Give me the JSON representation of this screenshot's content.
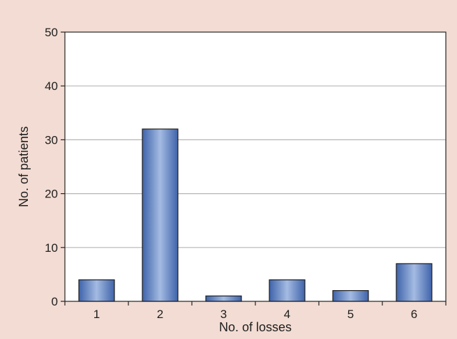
{
  "colors": {
    "background": "#f2dcd3",
    "plot_area": "#ffffff",
    "grid": "#b5b5b5",
    "axis": "#222222",
    "bar_dark": "#3f63aa",
    "bar_light": "#a4bbe2",
    "bar_edge": "#1c1c1c",
    "text": "#1e1e1e"
  },
  "chart_data": {
    "type": "bar",
    "categories": [
      "1",
      "2",
      "3",
      "4",
      "5",
      "6"
    ],
    "values": [
      4,
      32,
      1,
      4,
      2,
      7
    ],
    "title": "",
    "xlabel": "No. of losses",
    "ylabel": "No. of patients",
    "ylim": [
      0,
      50
    ],
    "yticks": [
      "0",
      "10",
      "20",
      "30",
      "40",
      "50"
    ],
    "grid": true,
    "legend": "none"
  }
}
